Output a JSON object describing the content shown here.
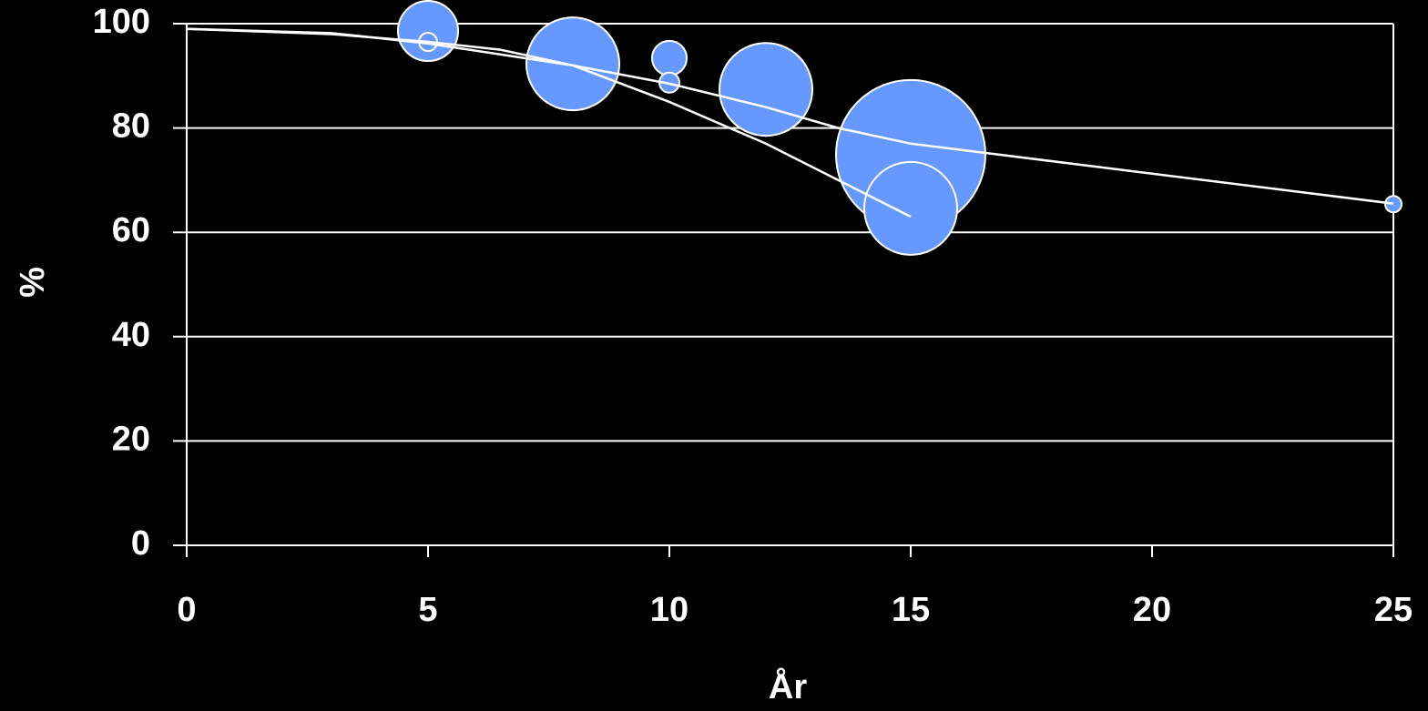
{
  "chart_data": {
    "type": "bubble",
    "x_label": "År",
    "y_label": "%",
    "xlim": [
      0,
      25
    ],
    "xticks": [
      0,
      5,
      10,
      15,
      20,
      25
    ],
    "ylim": [
      0,
      100
    ],
    "yticks": [
      0,
      20,
      40,
      60,
      80,
      100
    ],
    "grid": true,
    "series": [
      {
        "type": "bubble",
        "color": "#6699ff",
        "x": [
          5,
          5,
          8,
          10,
          10,
          12,
          15,
          15,
          25
        ],
        "values": [
          98.6,
          96.5,
          92.3,
          93.4,
          88.7,
          87.4,
          74.9,
          64.6,
          65.4
        ],
        "sizes": [
          33,
          10,
          51,
          19,
          11,
          51,
          82,
          51,
          9
        ]
      },
      {
        "type": "line",
        "color": "#ffffff",
        "x": [
          0,
          3,
          5,
          8,
          10,
          12,
          13.5,
          15,
          25
        ],
        "values": [
          99,
          98.2,
          96.2,
          92,
          88.5,
          84,
          80,
          77,
          65.5
        ]
      },
      {
        "type": "line",
        "color": "#ffffff",
        "x": [
          0,
          3,
          5,
          6.5,
          8,
          10,
          12,
          15
        ],
        "values": [
          99,
          98,
          96.5,
          95,
          92,
          85,
          77,
          63
        ]
      }
    ]
  }
}
